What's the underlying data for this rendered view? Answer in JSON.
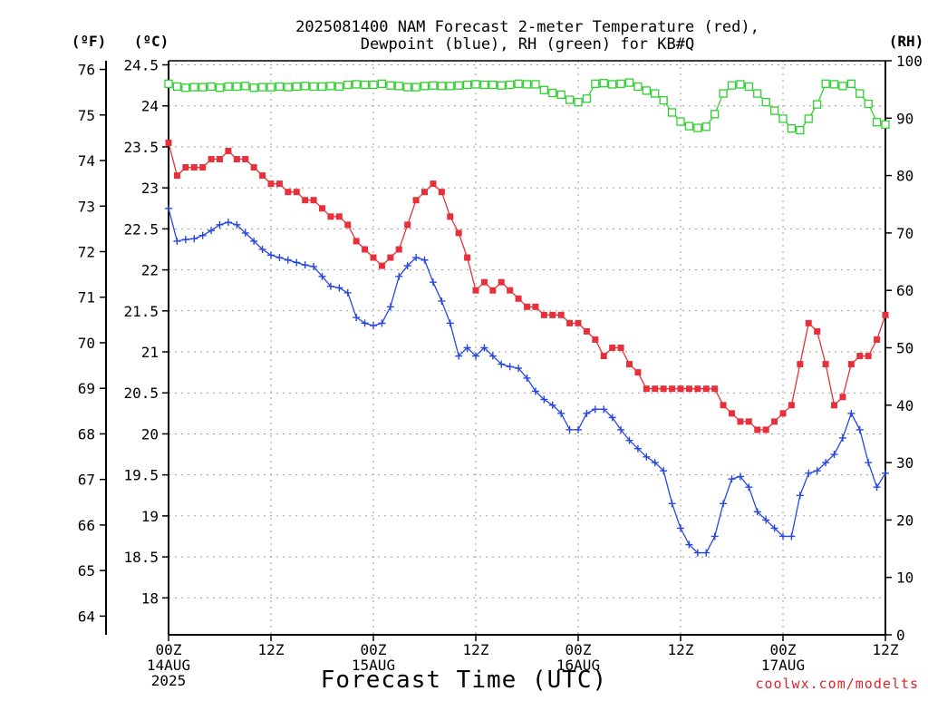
{
  "chart_data": {
    "type": "line",
    "title_lines": [
      "2025081400 NAM Forecast 2-meter Temperature (red),",
      "Dewpoint (blue), RH (green) for KB#Q"
    ],
    "xlabel": "Forecast Time (UTC)",
    "credit": "coolwx.com/modelts",
    "axis_units": {
      "fahrenheit": "(ºF)",
      "celsius": "(ºC)",
      "rh": "(RH)"
    },
    "x_axis": {
      "range_hours": [
        0,
        84
      ],
      "ticks": [
        {
          "hour": 0,
          "lines": [
            "00Z",
            "14AUG",
            "2025"
          ]
        },
        {
          "hour": 12,
          "lines": [
            "12Z"
          ]
        },
        {
          "hour": 24,
          "lines": [
            "00Z",
            "15AUG"
          ]
        },
        {
          "hour": 36,
          "lines": [
            "12Z"
          ]
        },
        {
          "hour": 48,
          "lines": [
            "00Z",
            "16AUG"
          ]
        },
        {
          "hour": 60,
          "lines": [
            "12Z"
          ]
        },
        {
          "hour": 72,
          "lines": [
            "00Z",
            "17AUG"
          ]
        },
        {
          "hour": 84,
          "lines": [
            "12Z"
          ]
        }
      ]
    },
    "y_celsius": {
      "range": [
        17.55,
        24.55
      ],
      "ticks": [
        "18",
        "18.5",
        "19",
        "19.5",
        "20",
        "20.5",
        "21",
        "21.5",
        "22",
        "22.5",
        "23",
        "23.5",
        "24",
        "24.5"
      ]
    },
    "y_fahrenheit": {
      "ticks": [
        "64",
        "65",
        "66",
        "67",
        "68",
        "69",
        "70",
        "71",
        "72",
        "73",
        "74",
        "75",
        "76"
      ]
    },
    "y_rh": {
      "range": [
        0,
        100
      ],
      "ticks": [
        "0",
        "10",
        "20",
        "30",
        "40",
        "50",
        "60",
        "70",
        "80",
        "90",
        "100"
      ]
    },
    "grid": true,
    "series": [
      {
        "name": "Temperature",
        "unit": "°C",
        "color": "#e8303a",
        "marker": "filled-square",
        "x_hours": [
          0,
          1,
          2,
          3,
          4,
          5,
          6,
          7,
          8,
          9,
          10,
          11,
          12,
          13,
          14,
          15,
          16,
          17,
          18,
          19,
          20,
          21,
          22,
          23,
          24,
          25,
          26,
          27,
          28,
          29,
          30,
          31,
          32,
          33,
          34,
          35,
          36,
          37,
          38,
          39,
          40,
          41,
          42,
          43,
          44,
          45,
          46,
          47,
          48,
          49,
          50,
          51,
          52,
          53,
          54,
          55,
          56,
          57,
          58,
          59,
          60,
          61,
          62,
          63,
          64,
          65,
          66,
          67,
          68,
          69,
          70,
          71,
          72,
          73,
          74,
          75,
          76,
          77,
          78,
          79,
          80,
          81,
          82,
          83,
          84
        ],
        "values": [
          23.55,
          23.15,
          23.25,
          23.25,
          23.25,
          23.35,
          23.35,
          23.45,
          23.35,
          23.35,
          23.25,
          23.15,
          23.05,
          23.05,
          22.95,
          22.95,
          22.85,
          22.85,
          22.75,
          22.65,
          22.65,
          22.55,
          22.35,
          22.25,
          22.15,
          22.05,
          22.15,
          22.25,
          22.55,
          22.85,
          22.95,
          23.05,
          22.95,
          22.65,
          22.45,
          22.15,
          21.75,
          21.85,
          21.75,
          21.85,
          21.75,
          21.65,
          21.55,
          21.55,
          21.45,
          21.45,
          21.45,
          21.35,
          21.35,
          21.25,
          21.15,
          20.95,
          21.05,
          21.05,
          20.85,
          20.75,
          20.55,
          20.55,
          20.55,
          20.55,
          20.55,
          20.55,
          20.55,
          20.55,
          20.55,
          20.35,
          20.25,
          20.15,
          20.15,
          20.05,
          20.05,
          20.15,
          20.25,
          20.35,
          20.85,
          21.35,
          21.25,
          20.85,
          20.35,
          20.45,
          20.85,
          20.95,
          20.95,
          21.15,
          21.45
        ]
      },
      {
        "name": "Dewpoint",
        "unit": "°C",
        "color": "#2747e0",
        "marker": "plus",
        "x_hours": [
          0,
          1,
          2,
          3,
          4,
          5,
          6,
          7,
          8,
          9,
          10,
          11,
          12,
          13,
          14,
          15,
          16,
          17,
          18,
          19,
          20,
          21,
          22,
          23,
          24,
          25,
          26,
          27,
          28,
          29,
          30,
          31,
          32,
          33,
          34,
          35,
          36,
          37,
          38,
          39,
          40,
          41,
          42,
          43,
          44,
          45,
          46,
          47,
          48,
          49,
          50,
          51,
          52,
          53,
          54,
          55,
          56,
          57,
          58,
          59,
          60,
          61,
          62,
          63,
          64,
          65,
          66,
          67,
          68,
          69,
          70,
          71,
          72,
          73,
          74,
          75,
          76,
          77,
          78,
          79,
          80,
          81,
          82,
          83,
          84
        ],
        "values": [
          22.75,
          22.35,
          22.37,
          22.38,
          22.42,
          22.48,
          22.55,
          22.58,
          22.55,
          22.45,
          22.35,
          22.25,
          22.18,
          22.15,
          22.12,
          22.09,
          22.06,
          22.04,
          21.92,
          21.8,
          21.78,
          21.72,
          21.42,
          21.35,
          21.32,
          21.35,
          21.55,
          21.92,
          22.05,
          22.15,
          22.12,
          21.85,
          21.62,
          21.35,
          20.95,
          21.05,
          20.95,
          21.05,
          20.95,
          20.85,
          20.82,
          20.8,
          20.68,
          20.52,
          20.42,
          20.35,
          20.25,
          20.05,
          20.05,
          20.25,
          20.3,
          20.3,
          20.2,
          20.05,
          19.92,
          19.82,
          19.72,
          19.65,
          19.55,
          19.15,
          18.85,
          18.65,
          18.55,
          18.55,
          18.75,
          19.15,
          19.45,
          19.48,
          19.35,
          19.05,
          18.95,
          18.85,
          18.75,
          18.75,
          19.25,
          19.52,
          19.55,
          19.65,
          19.75,
          19.95,
          20.25,
          20.05,
          19.65,
          19.35,
          19.52
        ]
      },
      {
        "name": "RH",
        "unit": "%",
        "color": "#2fd02f",
        "marker": "open-square",
        "x_hours": [
          0,
          1,
          2,
          3,
          4,
          5,
          6,
          7,
          8,
          9,
          10,
          11,
          12,
          13,
          14,
          15,
          16,
          17,
          18,
          19,
          20,
          21,
          22,
          23,
          24,
          25,
          26,
          27,
          28,
          29,
          30,
          31,
          32,
          33,
          34,
          35,
          36,
          37,
          38,
          39,
          40,
          41,
          42,
          43,
          44,
          45,
          46,
          47,
          48,
          49,
          50,
          51,
          52,
          53,
          54,
          55,
          56,
          57,
          58,
          59,
          60,
          61,
          62,
          63,
          64,
          65,
          66,
          67,
          68,
          69,
          70,
          71,
          72,
          73,
          74,
          75,
          76,
          77,
          78,
          79,
          80,
          81,
          82,
          83,
          84
        ],
        "values": [
          96,
          95.5,
          95.3,
          95.4,
          95.4,
          95.5,
          95.3,
          95.5,
          95.5,
          95.6,
          95.3,
          95.4,
          95.4,
          95.5,
          95.4,
          95.5,
          95.6,
          95.5,
          95.5,
          95.6,
          95.5,
          95.8,
          95.9,
          95.8,
          95.8,
          96.0,
          95.7,
          95.6,
          95.4,
          95.4,
          95.6,
          95.7,
          95.6,
          95.6,
          95.7,
          95.8,
          95.9,
          95.8,
          95.8,
          95.7,
          95.8,
          96.0,
          95.9,
          95.9,
          94.9,
          94.4,
          94.1,
          93.2,
          92.8,
          93.4,
          96.0,
          96.1,
          95.9,
          96.0,
          96.2,
          95.5,
          94.8,
          94.3,
          93.1,
          91.0,
          89.4,
          88.6,
          88.3,
          88.5,
          90.7,
          94.3,
          95.7,
          95.9,
          95.5,
          94.3,
          92.8,
          91.3,
          89.9,
          88.2,
          87.9,
          89.9,
          92.4,
          96.0,
          95.9,
          95.6,
          96.0,
          94.3,
          92.5,
          89.3,
          88.9
        ]
      }
    ]
  }
}
